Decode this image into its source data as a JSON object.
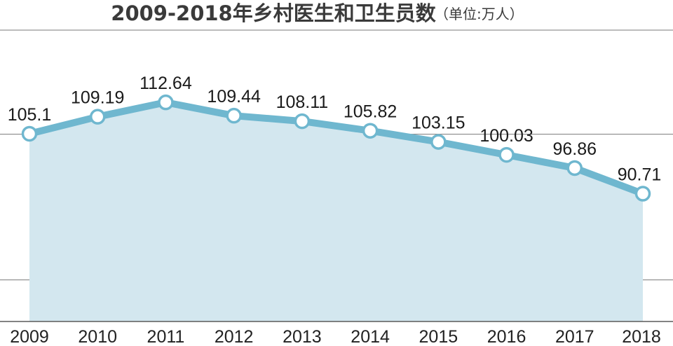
{
  "chart_data": {
    "type": "area",
    "title": "2009-2018年乡村医生和卫生员数",
    "subtitle": "（单位:万人）",
    "categories": [
      "2009",
      "2010",
      "2011",
      "2012",
      "2013",
      "2014",
      "2015",
      "2016",
      "2017",
      "2018"
    ],
    "series": [
      {
        "values": [
          105.1,
          109.19,
          112.64,
          109.44,
          108.11,
          105.82,
          103.15,
          100.03,
          96.86,
          90.71
        ],
        "data_labels": [
          "105.1",
          "109.19",
          "112.64",
          "109.44",
          "108.11",
          "105.82",
          "103.15",
          "100.03",
          "96.86",
          "90.71"
        ]
      }
    ],
    "xlabel": "",
    "ylabel": "",
    "ylim": [
      60,
      130
    ],
    "gridlines_y": [
      70,
      105,
      130
    ],
    "grid": true,
    "show_y_tick_labels": false,
    "legend": "none"
  },
  "colors": {
    "line": "#6fb7cf",
    "area": "#d3e7ef",
    "marker_fill": "#ffffff",
    "gridline": "#7a7a7a",
    "baseline": "#5a5a5a",
    "text": "#222222"
  }
}
